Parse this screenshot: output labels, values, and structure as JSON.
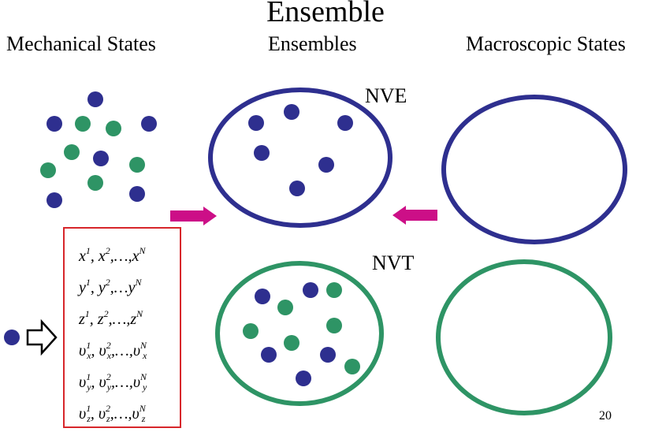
{
  "slide": {
    "title": "Ensemble",
    "page_number": "20"
  },
  "columns": {
    "mechanical": "Mechanical States",
    "ensembles": "Ensembles",
    "macroscopic": "Macroscopic States"
  },
  "ensembles": {
    "nve": "NVE",
    "nvt": "NVT"
  },
  "variables": {
    "rows": [
      {
        "sym": "x",
        "sep": ",…,",
        "sub": ""
      },
      {
        "sym": "y",
        "sep": ",…",
        "sub": ""
      },
      {
        "sym": "z",
        "sep": ",…,",
        "sub": ""
      },
      {
        "sym": "υ",
        "sep": ",…,",
        "sub": "x"
      },
      {
        "sym": "υ",
        "sep": ",…,",
        "sub": "y"
      },
      {
        "sym": "υ",
        "sep": ",…,",
        "sub": "z"
      }
    ]
  },
  "colors": {
    "blue": "#2e2f8f",
    "green": "#2e9465",
    "arrow": "#cc0f87",
    "box_border": "#d7262b"
  },
  "icons": [
    "hollow-right-arrow-icon",
    "magenta-right-arrow-icon",
    "magenta-left-arrow-icon"
  ]
}
